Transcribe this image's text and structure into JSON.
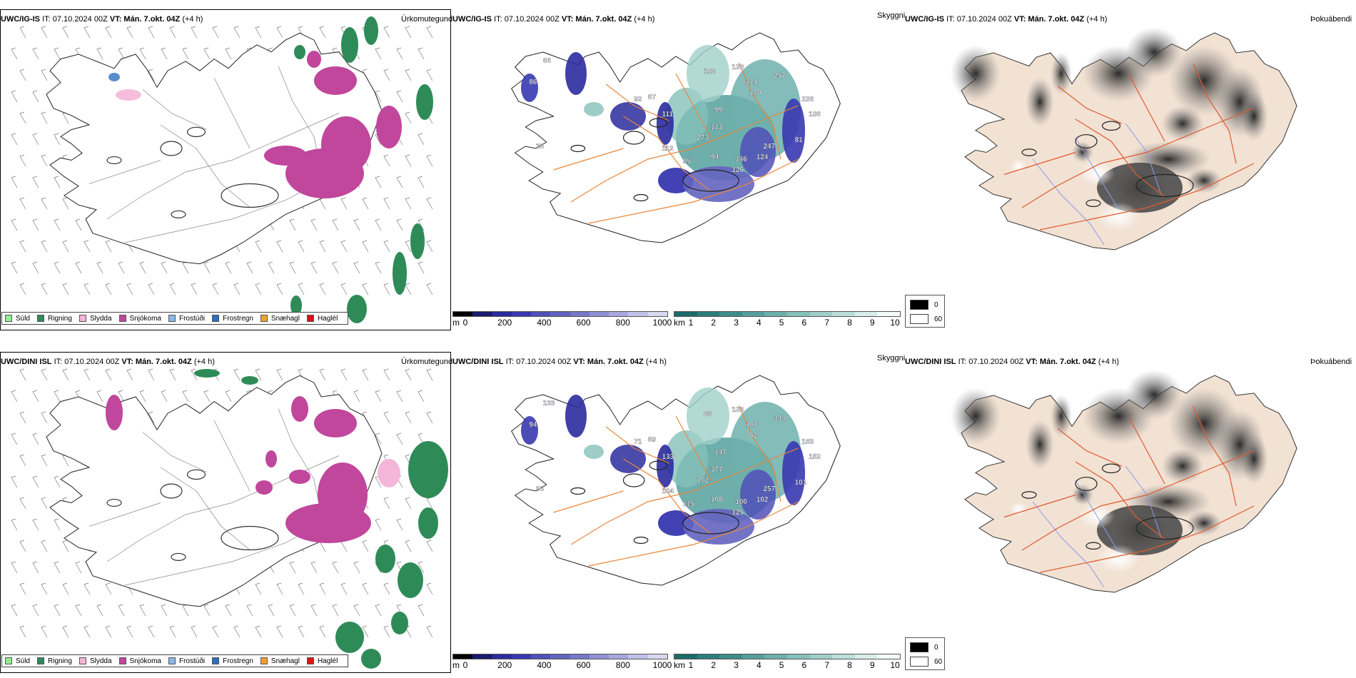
{
  "rows": [
    {
      "model": "UWC/IG-IS",
      "it_label": "IT: 07.10.2024 00Z",
      "vt_label": "VT: Mán. 7.okt. 04Z",
      "lead": "(+4 h)",
      "panel_titles": [
        "Úrkomutegund",
        "Skyggni",
        "Þokuábendi"
      ],
      "height_labels": [
        "66",
        "86",
        "92",
        "87",
        "111",
        "102",
        "128",
        "114",
        "170",
        "257",
        "99",
        "113",
        "108",
        "226",
        "273",
        "247",
        "95",
        "94",
        "146",
        "124",
        "126",
        "81",
        "112",
        "38"
      ]
    },
    {
      "model": "UWC/DINI ISL",
      "it_label": "IT: 07.10.2024 00Z",
      "vt_label": "VT: Mán. 7.okt. 04Z",
      "lead": "(+4 h)",
      "panel_titles": [
        "Úrkomutegund",
        "Skyggni",
        "Þokuábendi"
      ],
      "height_labels": [
        "133",
        "94",
        "71",
        "89",
        "133",
        "88",
        "123",
        "107",
        "82",
        "144",
        "147",
        "377",
        "152",
        "183",
        "102",
        "257",
        "115",
        "108",
        "100",
        "102",
        "125",
        "101",
        "104",
        "96"
      ]
    }
  ],
  "precip_legend": [
    {
      "label": "Súld",
      "color": "#90ee90"
    },
    {
      "label": "Rigning",
      "color": "#2e8b57"
    },
    {
      "label": "Slydda",
      "color": "#f4b6d8"
    },
    {
      "label": "Snjókoma",
      "color": "#c0479c"
    },
    {
      "label": "Frostúði",
      "color": "#87b8e8"
    },
    {
      "label": "Frostregn",
      "color": "#2e6fc0"
    },
    {
      "label": "Snæhagl",
      "color": "#f0a030"
    },
    {
      "label": "Haglél",
      "color": "#e01010"
    }
  ],
  "ceiling_bar": {
    "unit": "m",
    "ticks": [
      "0",
      "200",
      "400",
      "600",
      "800",
      "1000"
    ],
    "colors": [
      "#000000",
      "#1a1a6e",
      "#2b2b9e",
      "#3838b0",
      "#5050b8",
      "#6464c0",
      "#7878c8",
      "#9090d4",
      "#a8a8de",
      "#c0c0e8",
      "#d8d8f0"
    ]
  },
  "visibility_bar": {
    "unit": "km",
    "ticks": [
      "1",
      "2",
      "3",
      "4",
      "5",
      "6",
      "7",
      "8",
      "9",
      "10"
    ],
    "colors": [
      "#1c6b6b",
      "#2b7d7b",
      "#3d8e8a",
      "#55a09c",
      "#6db0ab",
      "#86c0ba",
      "#a0cfc9",
      "#bcdfd9",
      "#d8eeea",
      "#f4fbfa"
    ]
  },
  "fog_legend": [
    {
      "label": "0",
      "color": "#000000"
    },
    {
      "label": "60",
      "color": "#ffffff"
    }
  ]
}
